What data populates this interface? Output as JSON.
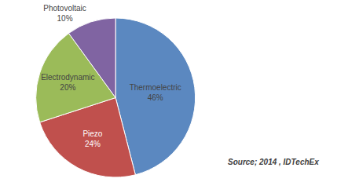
{
  "chart_data": {
    "type": "pie",
    "categories": [
      "Thermoelectric",
      "Piezo",
      "Electrodynamic",
      "Photovoltaic"
    ],
    "values": [
      46,
      24,
      20,
      10
    ],
    "value_labels": [
      "46%",
      "24%",
      "20%",
      "10%"
    ],
    "colors": [
      "#5B88C0",
      "#C0504D",
      "#9BBB59",
      "#8064A2"
    ],
    "data_labels": true,
    "annotations": [
      "Source; 2014 , IDTechEx"
    ]
  }
}
